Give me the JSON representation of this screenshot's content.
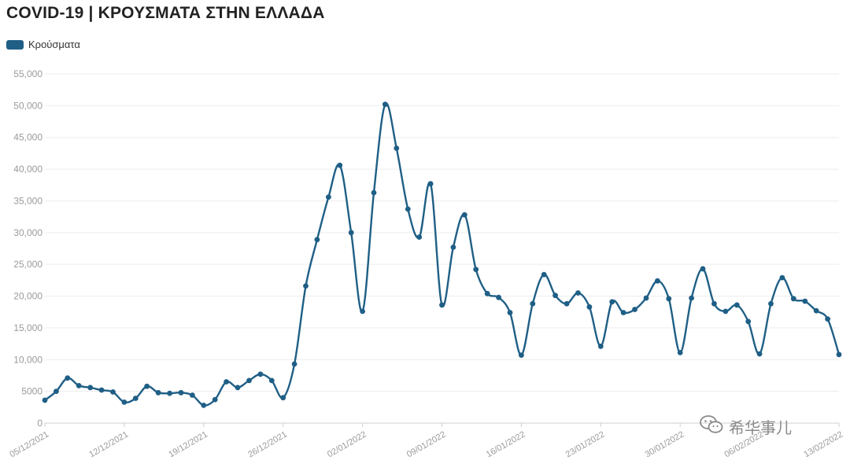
{
  "chart_data": {
    "type": "line",
    "title": "COVID-19 | ΚΡΟΥΣΜΑΤΑ ΣΤΗΝ ΕΛΛΑΔΑ",
    "xlabel": "",
    "ylabel": "",
    "ylim": [
      0,
      55000
    ],
    "y_ticks": [
      "0",
      "5000",
      "10,000",
      "15,000",
      "20,000",
      "25,000",
      "30,000",
      "35,000",
      "40,000",
      "45,000",
      "50,000",
      "55,000"
    ],
    "x_tick_labels": [
      "05/12/2021",
      "12/12/2021",
      "19/12/2021",
      "26/12/2021",
      "02/01/2022",
      "09/01/2022",
      "16/01/2022",
      "23/01/2022",
      "30/01/2022",
      "06/02/2022",
      "13/02/2022"
    ],
    "grid": "horizontal",
    "legend_position": "top-left",
    "series": [
      {
        "name": "Κρούσματα",
        "color": "#1f5f86",
        "values": [
          3600,
          5000,
          7100,
          5900,
          5600,
          5200,
          4900,
          3300,
          3900,
          5800,
          4800,
          4700,
          4800,
          4400,
          2800,
          3700,
          6500,
          5600,
          6700,
          7700,
          6700,
          4000,
          9300,
          21600,
          28900,
          35600,
          40600,
          30000,
          17600,
          36300,
          50200,
          43300,
          33700,
          29300,
          37700,
          18600,
          27700,
          32800,
          24200,
          20400,
          19800,
          17400,
          10700,
          18800,
          23400,
          20100,
          18800,
          20500,
          18300,
          12100,
          19100,
          17400,
          17900,
          19700,
          22400,
          19600,
          11100,
          19700,
          24300,
          18800,
          17600,
          18600,
          16000,
          10900,
          18800,
          22900,
          19600,
          19200,
          17700,
          16400,
          10800
        ]
      }
    ]
  },
  "watermark": {
    "icon": "wechat-icon",
    "text": "希华事儿"
  }
}
